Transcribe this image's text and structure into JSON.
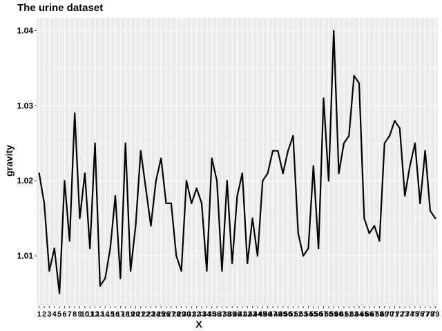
{
  "chart_data": {
    "type": "line",
    "title": "The urine dataset",
    "xlabel": "X",
    "ylabel": "gravity",
    "x": [
      "1",
      "2",
      "3",
      "4",
      "5",
      "6",
      "7",
      "8",
      "9",
      "10",
      "11",
      "12",
      "13",
      "14",
      "15",
      "16",
      "17",
      "18",
      "19",
      "20",
      "21",
      "22",
      "23",
      "24",
      "25",
      "26",
      "27",
      "28",
      "29",
      "30",
      "31",
      "32",
      "33",
      "34",
      "35",
      "36",
      "37",
      "38",
      "39",
      "40",
      "41",
      "42",
      "43",
      "44",
      "45",
      "46",
      "47",
      "48",
      "49",
      "50",
      "51",
      "52",
      "53",
      "54",
      "55",
      "56",
      "57",
      "58",
      "59",
      "60",
      "61",
      "62",
      "63",
      "64",
      "65",
      "66",
      "67",
      "68",
      "69",
      "70",
      "71",
      "72",
      "73",
      "74",
      "75",
      "76",
      "77",
      "78",
      "79"
    ],
    "series": [
      {
        "values": [
          1.021,
          1.017,
          1.008,
          1.011,
          1.005,
          1.02,
          1.012,
          1.029,
          1.015,
          1.021,
          1.011,
          1.025,
          1.006,
          1.007,
          1.011,
          1.018,
          1.007,
          1.025,
          1.008,
          1.014,
          1.024,
          1.019,
          1.014,
          1.02,
          1.023,
          1.017,
          1.017,
          1.01,
          1.008,
          1.02,
          1.017,
          1.019,
          1.017,
          1.008,
          1.023,
          1.02,
          1.008,
          1.02,
          1.009,
          1.018,
          1.021,
          1.009,
          1.015,
          1.01,
          1.02,
          1.021,
          1.024,
          1.024,
          1.021,
          1.024,
          1.026,
          1.013,
          1.01,
          1.011,
          1.022,
          1.011,
          1.031,
          1.02,
          1.04,
          1.021,
          1.025,
          1.026,
          1.034,
          1.033,
          1.015,
          1.013,
          1.014,
          1.012,
          1.025,
          1.026,
          1.028,
          1.027,
          1.018,
          1.022,
          1.025,
          1.017,
          1.024,
          1.016,
          1.015
        ],
        "color": "#000000"
      }
    ],
    "yticks": [
      "1.01",
      "1.02",
      "1.03",
      "1.04"
    ],
    "ylim": [
      1.0033,
      1.0417
    ],
    "grid": true,
    "panel_background": "#EBEBEB",
    "grid_color": "#FFFFFF"
  }
}
